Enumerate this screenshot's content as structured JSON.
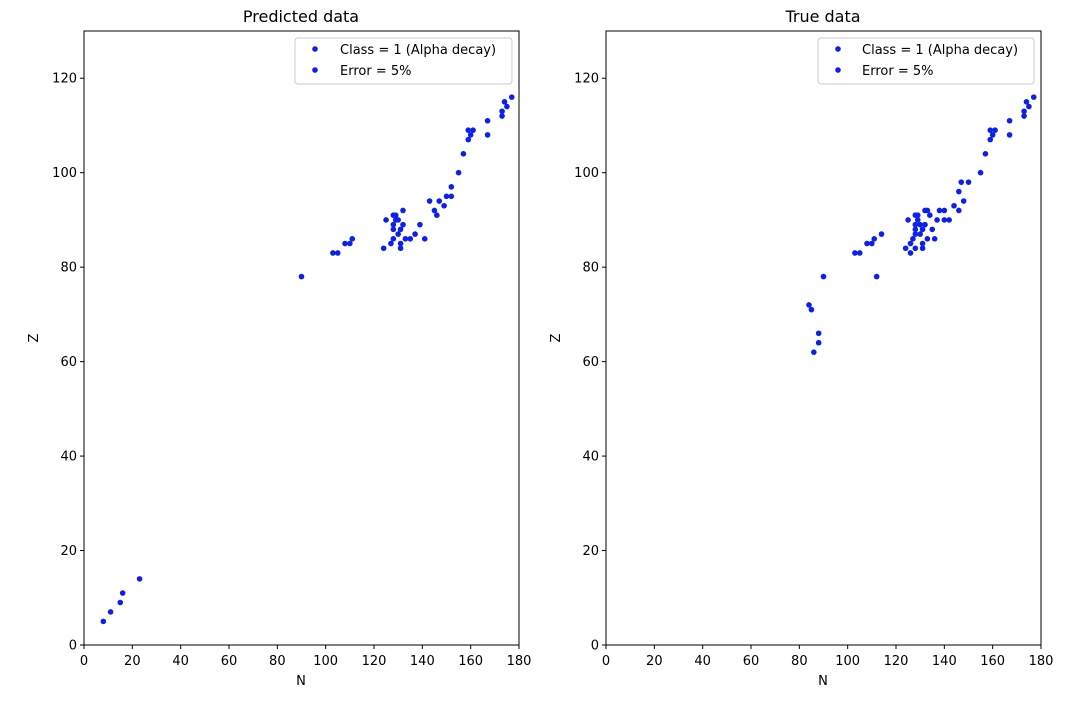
{
  "chart_data": [
    {
      "type": "scatter",
      "title": "Predicted data",
      "xlabel": "N",
      "ylabel": "Z",
      "xlim": [
        0,
        180
      ],
      "ylim": [
        0,
        130
      ],
      "xticks": [
        0,
        20,
        40,
        60,
        80,
        100,
        120,
        140,
        160,
        180
      ],
      "yticks": [
        0,
        20,
        40,
        60,
        80,
        100,
        120
      ],
      "grid": false,
      "legend_position": "top-right",
      "legend": [
        "Class = 1 (Alpha decay)",
        "Error = 5%"
      ],
      "marker_color": "#0a1ff0",
      "points": [
        [
          8,
          5
        ],
        [
          11,
          7
        ],
        [
          15,
          9
        ],
        [
          16,
          11
        ],
        [
          23,
          14
        ],
        [
          90,
          78
        ],
        [
          103,
          83
        ],
        [
          105,
          83
        ],
        [
          108,
          85
        ],
        [
          110,
          85
        ],
        [
          111,
          86
        ],
        [
          124,
          84
        ],
        [
          125,
          90
        ],
        [
          127,
          85
        ],
        [
          128,
          86
        ],
        [
          128,
          88
        ],
        [
          128,
          89
        ],
        [
          128,
          91
        ],
        [
          129,
          90
        ],
        [
          129,
          91
        ],
        [
          130,
          87
        ],
        [
          130,
          90
        ],
        [
          131,
          84
        ],
        [
          131,
          85
        ],
        [
          131,
          88
        ],
        [
          132,
          89
        ],
        [
          132,
          92
        ],
        [
          133,
          86
        ],
        [
          135,
          86
        ],
        [
          137,
          87
        ],
        [
          139,
          89
        ],
        [
          141,
          86
        ],
        [
          143,
          94
        ],
        [
          145,
          92
        ],
        [
          146,
          91
        ],
        [
          147,
          94
        ],
        [
          149,
          93
        ],
        [
          150,
          95
        ],
        [
          152,
          95
        ],
        [
          152,
          97
        ],
        [
          155,
          100
        ],
        [
          157,
          104
        ],
        [
          159,
          107
        ],
        [
          159,
          109
        ],
        [
          160,
          108
        ],
        [
          161,
          109
        ],
        [
          167,
          108
        ],
        [
          167,
          111
        ],
        [
          173,
          112
        ],
        [
          173,
          113
        ],
        [
          174,
          115
        ],
        [
          175,
          114
        ],
        [
          177,
          116
        ]
      ]
    },
    {
      "type": "scatter",
      "title": "True data",
      "xlabel": "N",
      "ylabel": "Z",
      "xlim": [
        0,
        180
      ],
      "ylim": [
        0,
        130
      ],
      "xticks": [
        0,
        20,
        40,
        60,
        80,
        100,
        120,
        140,
        160,
        180
      ],
      "yticks": [
        0,
        20,
        40,
        60,
        80,
        100,
        120
      ],
      "grid": false,
      "legend_position": "top-right",
      "legend": [
        "Class = 1 (Alpha decay)",
        "Error = 5%"
      ],
      "marker_color": "#0a1ff0",
      "points": [
        [
          84,
          72
        ],
        [
          85,
          71
        ],
        [
          86,
          62
        ],
        [
          88,
          64
        ],
        [
          88,
          66
        ],
        [
          90,
          78
        ],
        [
          103,
          83
        ],
        [
          105,
          83
        ],
        [
          108,
          85
        ],
        [
          110,
          85
        ],
        [
          111,
          86
        ],
        [
          112,
          78
        ],
        [
          114,
          87
        ],
        [
          124,
          84
        ],
        [
          125,
          90
        ],
        [
          126,
          83
        ],
        [
          126,
          85
        ],
        [
          127,
          86
        ],
        [
          128,
          84
        ],
        [
          128,
          87
        ],
        [
          128,
          88
        ],
        [
          128,
          89
        ],
        [
          128,
          91
        ],
        [
          129,
          90
        ],
        [
          129,
          91
        ],
        [
          130,
          87
        ],
        [
          130,
          89
        ],
        [
          131,
          84
        ],
        [
          131,
          85
        ],
        [
          131,
          88
        ],
        [
          132,
          89
        ],
        [
          132,
          92
        ],
        [
          133,
          86
        ],
        [
          133,
          92
        ],
        [
          134,
          91
        ],
        [
          135,
          88
        ],
        [
          136,
          86
        ],
        [
          137,
          90
        ],
        [
          138,
          92
        ],
        [
          140,
          90
        ],
        [
          140,
          92
        ],
        [
          142,
          90
        ],
        [
          144,
          93
        ],
        [
          146,
          92
        ],
        [
          146,
          96
        ],
        [
          147,
          98
        ],
        [
          148,
          94
        ],
        [
          150,
          98
        ],
        [
          155,
          100
        ],
        [
          157,
          104
        ],
        [
          159,
          107
        ],
        [
          159,
          109
        ],
        [
          160,
          108
        ],
        [
          161,
          109
        ],
        [
          167,
          108
        ],
        [
          167,
          111
        ],
        [
          173,
          112
        ],
        [
          173,
          113
        ],
        [
          174,
          115
        ],
        [
          175,
          114
        ],
        [
          177,
          116
        ]
      ]
    }
  ]
}
